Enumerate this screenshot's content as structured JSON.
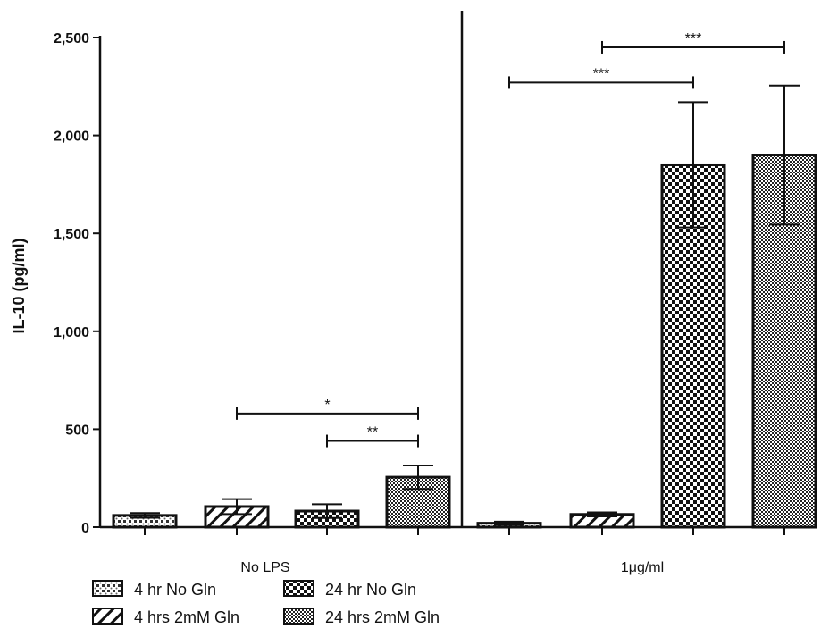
{
  "chart_data": {
    "type": "bar",
    "ylabel": "IL-10 (pg/ml)",
    "ylim": [
      0,
      2500
    ],
    "yticks": [
      0,
      500,
      1000,
      1500,
      2000,
      2500
    ],
    "ytick_labels": [
      "0",
      "500",
      "1,000",
      "1,500",
      "2,000",
      "2,500"
    ],
    "groups": [
      {
        "label": "No LPS",
        "bars": [
          {
            "series": "4 hr No Gln",
            "value": 60,
            "error": 12
          },
          {
            "series": "4 hrs 2mM Gln",
            "value": 105,
            "error": 38
          },
          {
            "series": "24 hr No Gln",
            "value": 82,
            "error": 35
          },
          {
            "series": "24 hrs 2mM Gln",
            "value": 255,
            "error": 60
          }
        ]
      },
      {
        "label": "1μg/ml",
        "bars": [
          {
            "series": "4 hr No Gln",
            "value": 20,
            "error": 8
          },
          {
            "series": "4 hrs 2mM Gln",
            "value": 65,
            "error": 10
          },
          {
            "series": "24 hr No Gln",
            "value": 1850,
            "error": 320
          },
          {
            "series": "24 hrs 2mM Gln",
            "value": 1900,
            "error": 355
          }
        ]
      }
    ],
    "significance": [
      {
        "label": "*",
        "from": [
          0,
          1
        ],
        "to": [
          0,
          3
        ],
        "y": 580
      },
      {
        "label": "**",
        "from": [
          0,
          2
        ],
        "to": [
          0,
          3
        ],
        "y": 440
      },
      {
        "label": "***",
        "from": [
          1,
          0
        ],
        "to": [
          1,
          2
        ],
        "y": 2270
      },
      {
        "label": "***",
        "from": [
          1,
          1
        ],
        "to": [
          1,
          3
        ],
        "y": 2450
      }
    ],
    "legend": [
      {
        "label": "4 hr No Gln",
        "pattern": "fine-dots"
      },
      {
        "label": "24 hr No Gln",
        "pattern": "checker"
      },
      {
        "label": "4 hrs 2mM Gln",
        "pattern": "diagonal-hatch"
      },
      {
        "label": "24 hrs 2mM Gln",
        "pattern": "fine-checker"
      }
    ],
    "legend_position": "bottom-left"
  }
}
